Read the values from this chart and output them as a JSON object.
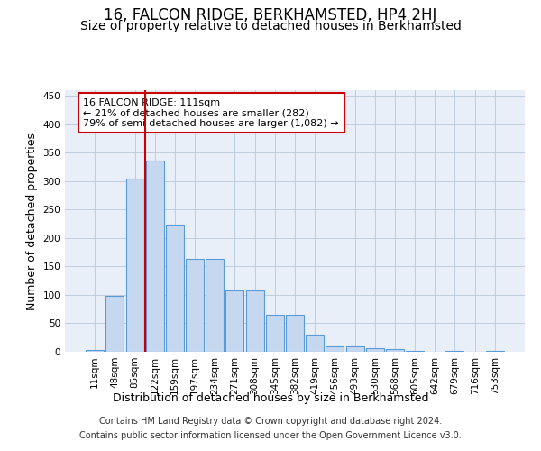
{
  "title": "16, FALCON RIDGE, BERKHAMSTED, HP4 2HJ",
  "subtitle": "Size of property relative to detached houses in Berkhamsted",
  "xlabel": "Distribution of detached houses by size in Berkhamsted",
  "ylabel": "Number of detached properties",
  "footnote1": "Contains HM Land Registry data © Crown copyright and database right 2024.",
  "footnote2": "Contains public sector information licensed under the Open Government Licence v3.0.",
  "bar_labels": [
    "11sqm",
    "48sqm",
    "85sqm",
    "122sqm",
    "159sqm",
    "197sqm",
    "234sqm",
    "271sqm",
    "308sqm",
    "345sqm",
    "382sqm",
    "419sqm",
    "456sqm",
    "493sqm",
    "530sqm",
    "568sqm",
    "605sqm",
    "642sqm",
    "679sqm",
    "716sqm",
    "753sqm"
  ],
  "bar_values": [
    3,
    98,
    305,
    336,
    224,
    164,
    164,
    108,
    108,
    65,
    65,
    30,
    10,
    10,
    7,
    4,
    2,
    0,
    2,
    0,
    2
  ],
  "bar_color": "#c5d8f0",
  "bar_edge_color": "#5b9bd5",
  "vline_bin_index": 2,
  "vline_color": "#cc0000",
  "annotation_line1": "16 FALCON RIDGE: 111sqm",
  "annotation_line2": "← 21% of detached houses are smaller (282)",
  "annotation_line3": "79% of semi-detached houses are larger (1,082) →",
  "annotation_box_facecolor": "#ffffff",
  "annotation_box_edgecolor": "#cc0000",
  "ylim": [
    0,
    460
  ],
  "yticks": [
    0,
    50,
    100,
    150,
    200,
    250,
    300,
    350,
    400,
    450
  ],
  "background_color": "#ffffff",
  "plot_bg_color": "#e8eff8",
  "grid_color": "#b8c8d8",
  "title_fontsize": 12,
  "subtitle_fontsize": 10,
  "axis_label_fontsize": 9,
  "tick_fontsize": 7.5,
  "annotation_fontsize": 8,
  "footnote_fontsize": 7
}
